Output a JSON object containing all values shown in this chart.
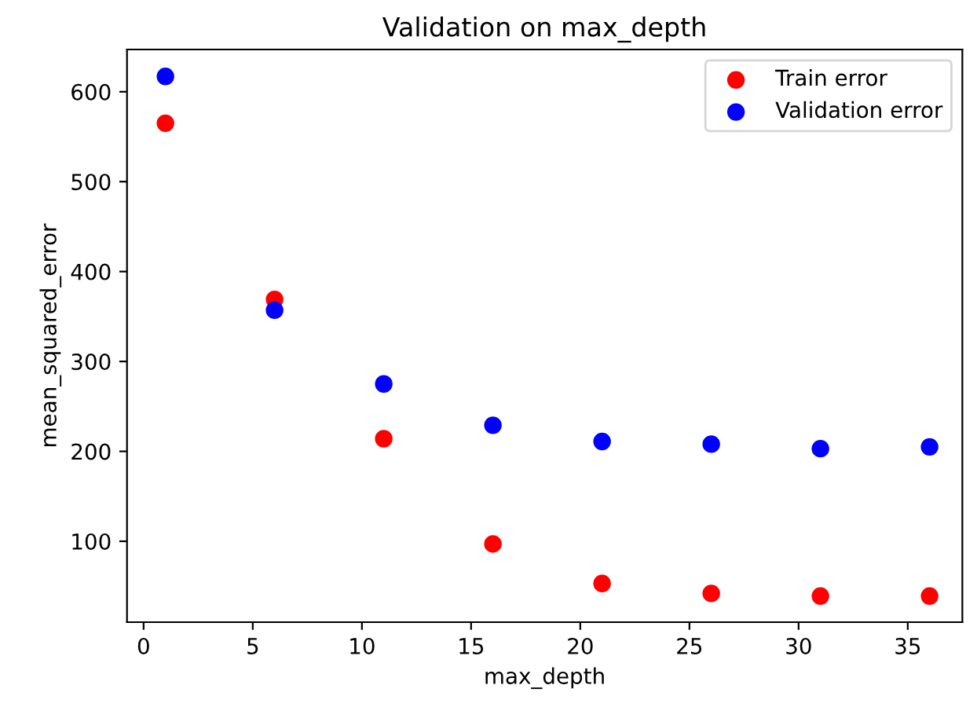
{
  "chart_data": {
    "type": "scatter",
    "title": "Validation on max_depth",
    "xlabel": "max_depth",
    "ylabel": "mean_squared_error",
    "x": [
      1,
      6,
      11,
      16,
      21,
      26,
      31,
      36
    ],
    "series": [
      {
        "name": "Train error",
        "color": "#ff0000",
        "values": [
          565,
          369,
          214,
          97,
          53,
          42,
          39,
          39
        ]
      },
      {
        "name": "Validation error",
        "color": "#0000ff",
        "values": [
          617,
          357,
          275,
          229,
          211,
          208,
          203,
          205
        ]
      }
    ],
    "xlim": [
      -0.76,
      37.5
    ],
    "ylim": [
      10,
      647
    ],
    "xticks": [
      0,
      5,
      10,
      15,
      20,
      25,
      30,
      35
    ],
    "yticks": [
      100,
      200,
      300,
      400,
      500,
      600
    ],
    "grid": false,
    "legend": "top right",
    "marker": "circle"
  }
}
